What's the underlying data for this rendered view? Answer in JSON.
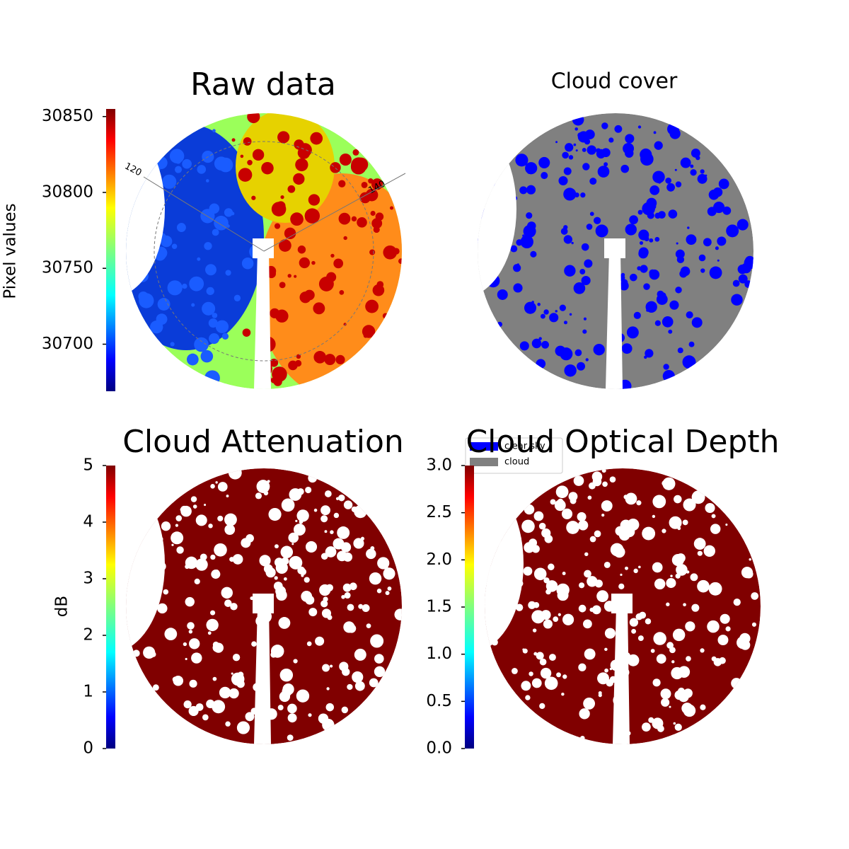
{
  "chart_data": [
    {
      "type": "image",
      "title": "Raw data",
      "colorbar_label": "Pixel values",
      "ylim": [
        30669,
        30855
      ],
      "yticks": [
        30700,
        30750,
        30800,
        30850
      ],
      "annotations": [
        "120",
        "140"
      ]
    },
    {
      "type": "image",
      "title": "Cloud cover",
      "series": [
        {
          "name": "clear sky",
          "color": "#0000ff"
        },
        {
          "name": "cloud",
          "color": "#808080"
        }
      ]
    },
    {
      "type": "image",
      "title": "Cloud Attenuation",
      "colorbar_label": "dB",
      "ylim": [
        0,
        5
      ],
      "yticks": [
        0,
        1,
        2,
        3,
        4,
        5
      ]
    },
    {
      "type": "image",
      "title": "Cloud Optical Depth",
      "ylim": [
        0,
        3
      ],
      "yticks": [
        {
          "value": 0,
          "label": "0.0"
        },
        0.5,
        {
          "value": 1,
          "label": "1.0"
        },
        1.5,
        {
          "value": 2,
          "label": "2.0"
        },
        2.5,
        {
          "value": 3,
          "label": "3.0"
        }
      ]
    }
  ]
}
